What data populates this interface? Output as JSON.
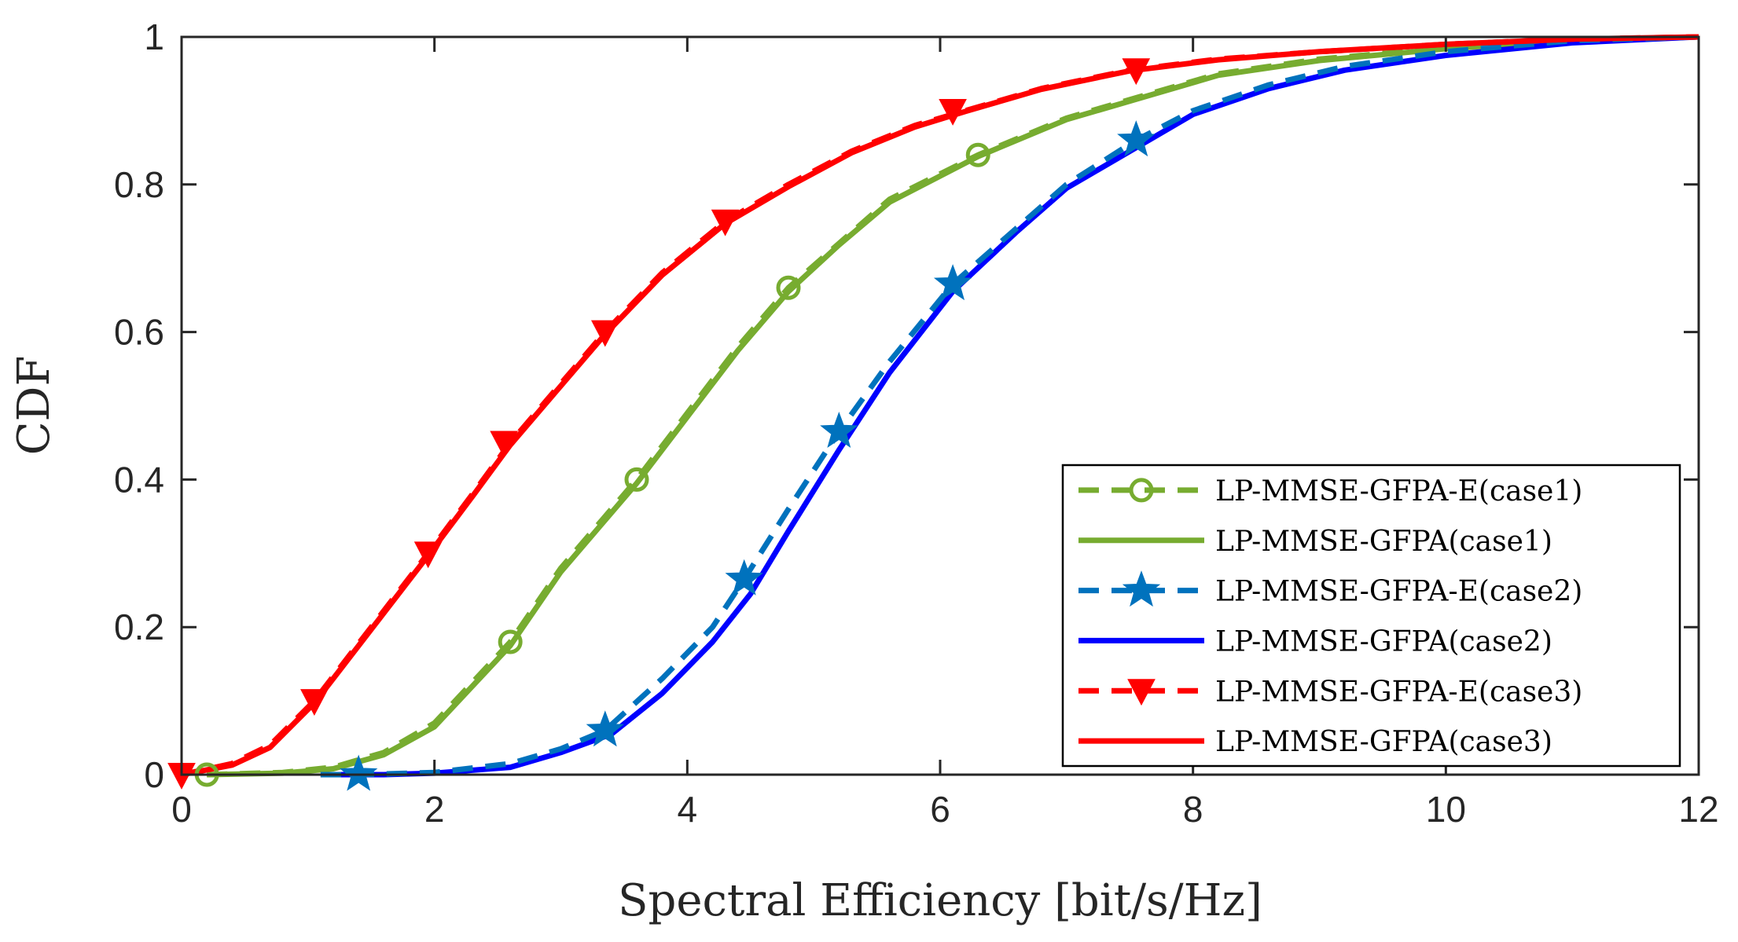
{
  "chart_data": {
    "type": "line",
    "title": "",
    "xlabel": "Spectral Efficiency [bit/s/Hz]",
    "ylabel": "CDF",
    "xlim": [
      0,
      12
    ],
    "ylim": [
      0,
      1
    ],
    "xticks": [
      0,
      2,
      4,
      6,
      8,
      10,
      12
    ],
    "xtick_labels": [
      "0",
      "2",
      "4",
      "6",
      "8",
      "10",
      "12"
    ],
    "yticks": [
      0,
      0.2,
      0.4,
      0.6,
      0.8,
      1
    ],
    "ytick_labels": [
      "0",
      "0.2",
      "0.4",
      "0.6",
      "0.8",
      "1"
    ],
    "grid": false,
    "legend_position": "bottom-right",
    "series": [
      {
        "name": "LP-MMSE-GFPA-E(case1)",
        "color": "#77ac30",
        "dash": "dashed",
        "marker": "circle",
        "x": [
          0.2,
          0.8,
          1.2,
          1.6,
          2.0,
          2.6,
          3.0,
          3.6,
          4.0,
          4.4,
          4.8,
          5.2,
          5.6,
          6.3,
          7.0,
          7.6,
          8.2,
          9.0,
          10.0,
          11.0,
          12.0
        ],
        "y": [
          0.0,
          0.003,
          0.01,
          0.03,
          0.07,
          0.18,
          0.28,
          0.4,
          0.49,
          0.58,
          0.66,
          0.72,
          0.78,
          0.84,
          0.89,
          0.92,
          0.95,
          0.97,
          0.985,
          0.995,
          1.0
        ],
        "markers_x": [
          0.2,
          2.6,
          3.6,
          4.8,
          6.3
        ],
        "markers_y": [
          0.0,
          0.18,
          0.4,
          0.66,
          0.84
        ]
      },
      {
        "name": "LP-MMSE-GFPA(case1)",
        "color": "#77ac30",
        "dash": "solid",
        "marker": "none",
        "x": [
          0.2,
          0.8,
          1.2,
          1.6,
          2.0,
          2.6,
          3.0,
          3.6,
          4.0,
          4.4,
          4.8,
          5.2,
          5.6,
          6.3,
          7.0,
          7.6,
          8.2,
          9.0,
          10.0,
          11.0,
          12.0
        ],
        "y": [
          0.0,
          0.002,
          0.008,
          0.027,
          0.065,
          0.175,
          0.275,
          0.395,
          0.485,
          0.575,
          0.655,
          0.718,
          0.776,
          0.838,
          0.888,
          0.918,
          0.948,
          0.968,
          0.984,
          0.995,
          1.0
        ]
      },
      {
        "name": "LP-MMSE-GFPA-E(case2)",
        "color": "#0072bd",
        "dash": "dashed",
        "marker": "star",
        "x": [
          1.1,
          1.4,
          2.0,
          2.6,
          3.0,
          3.35,
          3.8,
          4.2,
          4.45,
          4.8,
          5.2,
          5.6,
          6.1,
          6.6,
          7.0,
          7.55,
          8.0,
          8.6,
          9.2,
          10.0,
          11.0,
          12.0
        ],
        "y": [
          0.0,
          0.0,
          0.003,
          0.015,
          0.035,
          0.06,
          0.13,
          0.2,
          0.265,
          0.36,
          0.465,
          0.56,
          0.665,
          0.74,
          0.8,
          0.86,
          0.9,
          0.935,
          0.96,
          0.98,
          0.995,
          1.0
        ],
        "markers_x": [
          1.4,
          3.35,
          4.45,
          5.2,
          6.1,
          7.55
        ],
        "markers_y": [
          0.0,
          0.06,
          0.265,
          0.465,
          0.665,
          0.86
        ]
      },
      {
        "name": "LP-MMSE-GFPA(case2)",
        "color": "#0000ff",
        "dash": "solid",
        "marker": "none",
        "x": [
          1.1,
          1.6,
          2.0,
          2.6,
          3.0,
          3.4,
          3.8,
          4.2,
          4.5,
          4.8,
          5.2,
          5.6,
          6.1,
          6.6,
          7.0,
          7.6,
          8.0,
          8.6,
          9.2,
          10.0,
          11.0,
          12.0
        ],
        "y": [
          0.0,
          0.0,
          0.002,
          0.01,
          0.03,
          0.055,
          0.11,
          0.18,
          0.245,
          0.33,
          0.44,
          0.545,
          0.655,
          0.735,
          0.795,
          0.855,
          0.895,
          0.93,
          0.955,
          0.975,
          0.992,
          1.0
        ]
      },
      {
        "name": "LP-MMSE-GFPA-E(case3)",
        "color": "#ff0000",
        "dash": "dashed",
        "marker": "triangle-down",
        "x": [
          0.0,
          0.4,
          0.7,
          1.05,
          1.5,
          1.95,
          2.3,
          2.6,
          3.0,
          3.35,
          3.8,
          4.3,
          4.8,
          5.3,
          5.8,
          6.2,
          6.8,
          7.5,
          8.2,
          9.0,
          10.0,
          11.0,
          12.0
        ],
        "y": [
          0.0,
          0.015,
          0.04,
          0.1,
          0.2,
          0.3,
          0.38,
          0.45,
          0.53,
          0.6,
          0.68,
          0.75,
          0.8,
          0.845,
          0.88,
          0.9,
          0.93,
          0.955,
          0.97,
          0.98,
          0.99,
          0.997,
          1.0
        ],
        "markers_x": [
          0.0,
          1.05,
          1.95,
          2.55,
          3.35,
          4.3,
          6.1,
          7.55
        ],
        "markers_y": [
          0.0,
          0.1,
          0.3,
          0.45,
          0.6,
          0.75,
          0.9,
          0.955
        ]
      },
      {
        "name": "LP-MMSE-GFPA(case3)",
        "color": "#ff0000",
        "dash": "solid",
        "marker": "none",
        "x": [
          0.0,
          0.4,
          0.7,
          1.05,
          1.5,
          1.95,
          2.3,
          2.6,
          3.0,
          3.35,
          3.8,
          4.3,
          4.8,
          5.3,
          5.8,
          6.2,
          6.8,
          7.5,
          8.2,
          9.0,
          10.0,
          11.0,
          12.0
        ],
        "y": [
          0.0,
          0.013,
          0.037,
          0.097,
          0.197,
          0.297,
          0.377,
          0.447,
          0.527,
          0.597,
          0.677,
          0.747,
          0.797,
          0.843,
          0.878,
          0.899,
          0.929,
          0.954,
          0.969,
          0.98,
          0.99,
          0.997,
          1.0
        ]
      }
    ]
  }
}
